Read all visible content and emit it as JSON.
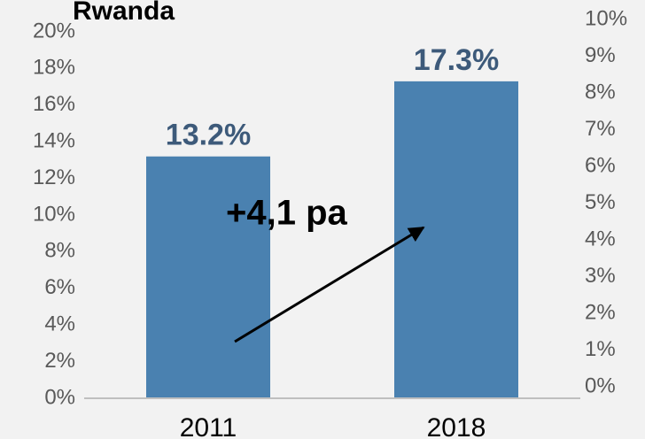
{
  "chart_data": {
    "type": "bar",
    "title": "Rwanda",
    "categories": [
      "2011",
      "2018"
    ],
    "values": [
      13.2,
      17.3
    ],
    "value_labels": [
      "13.2%",
      "17.3%"
    ],
    "color": "#4a81b0",
    "ylim": [
      0,
      20
    ],
    "yticks": [
      {
        "value": 0,
        "label": "0%"
      },
      {
        "value": 2,
        "label": "2%"
      },
      {
        "value": 4,
        "label": "4%"
      },
      {
        "value": 6,
        "label": "6%"
      },
      {
        "value": 8,
        "label": "8%"
      },
      {
        "value": 10,
        "label": "10%"
      },
      {
        "value": 12,
        "label": "12%"
      },
      {
        "value": 14,
        "label": "14%"
      },
      {
        "value": 16,
        "label": "16%"
      },
      {
        "value": 18,
        "label": "18%"
      },
      {
        "value": 20,
        "label": "20%"
      }
    ],
    "y2lim": [
      0,
      10
    ],
    "y2ticks": [
      {
        "value": 0,
        "label": "0%"
      },
      {
        "value": 1,
        "label": "1%"
      },
      {
        "value": 2,
        "label": "2%"
      },
      {
        "value": 3,
        "label": "3%"
      },
      {
        "value": 4,
        "label": "4%"
      },
      {
        "value": 5,
        "label": "5%"
      },
      {
        "value": 6,
        "label": "6%"
      },
      {
        "value": 7,
        "label": "7%"
      },
      {
        "value": 8,
        "label": "8%"
      },
      {
        "value": 9,
        "label": "9%"
      },
      {
        "value": 10,
        "label": "10%"
      }
    ],
    "annotation": "+4,1 pa"
  }
}
